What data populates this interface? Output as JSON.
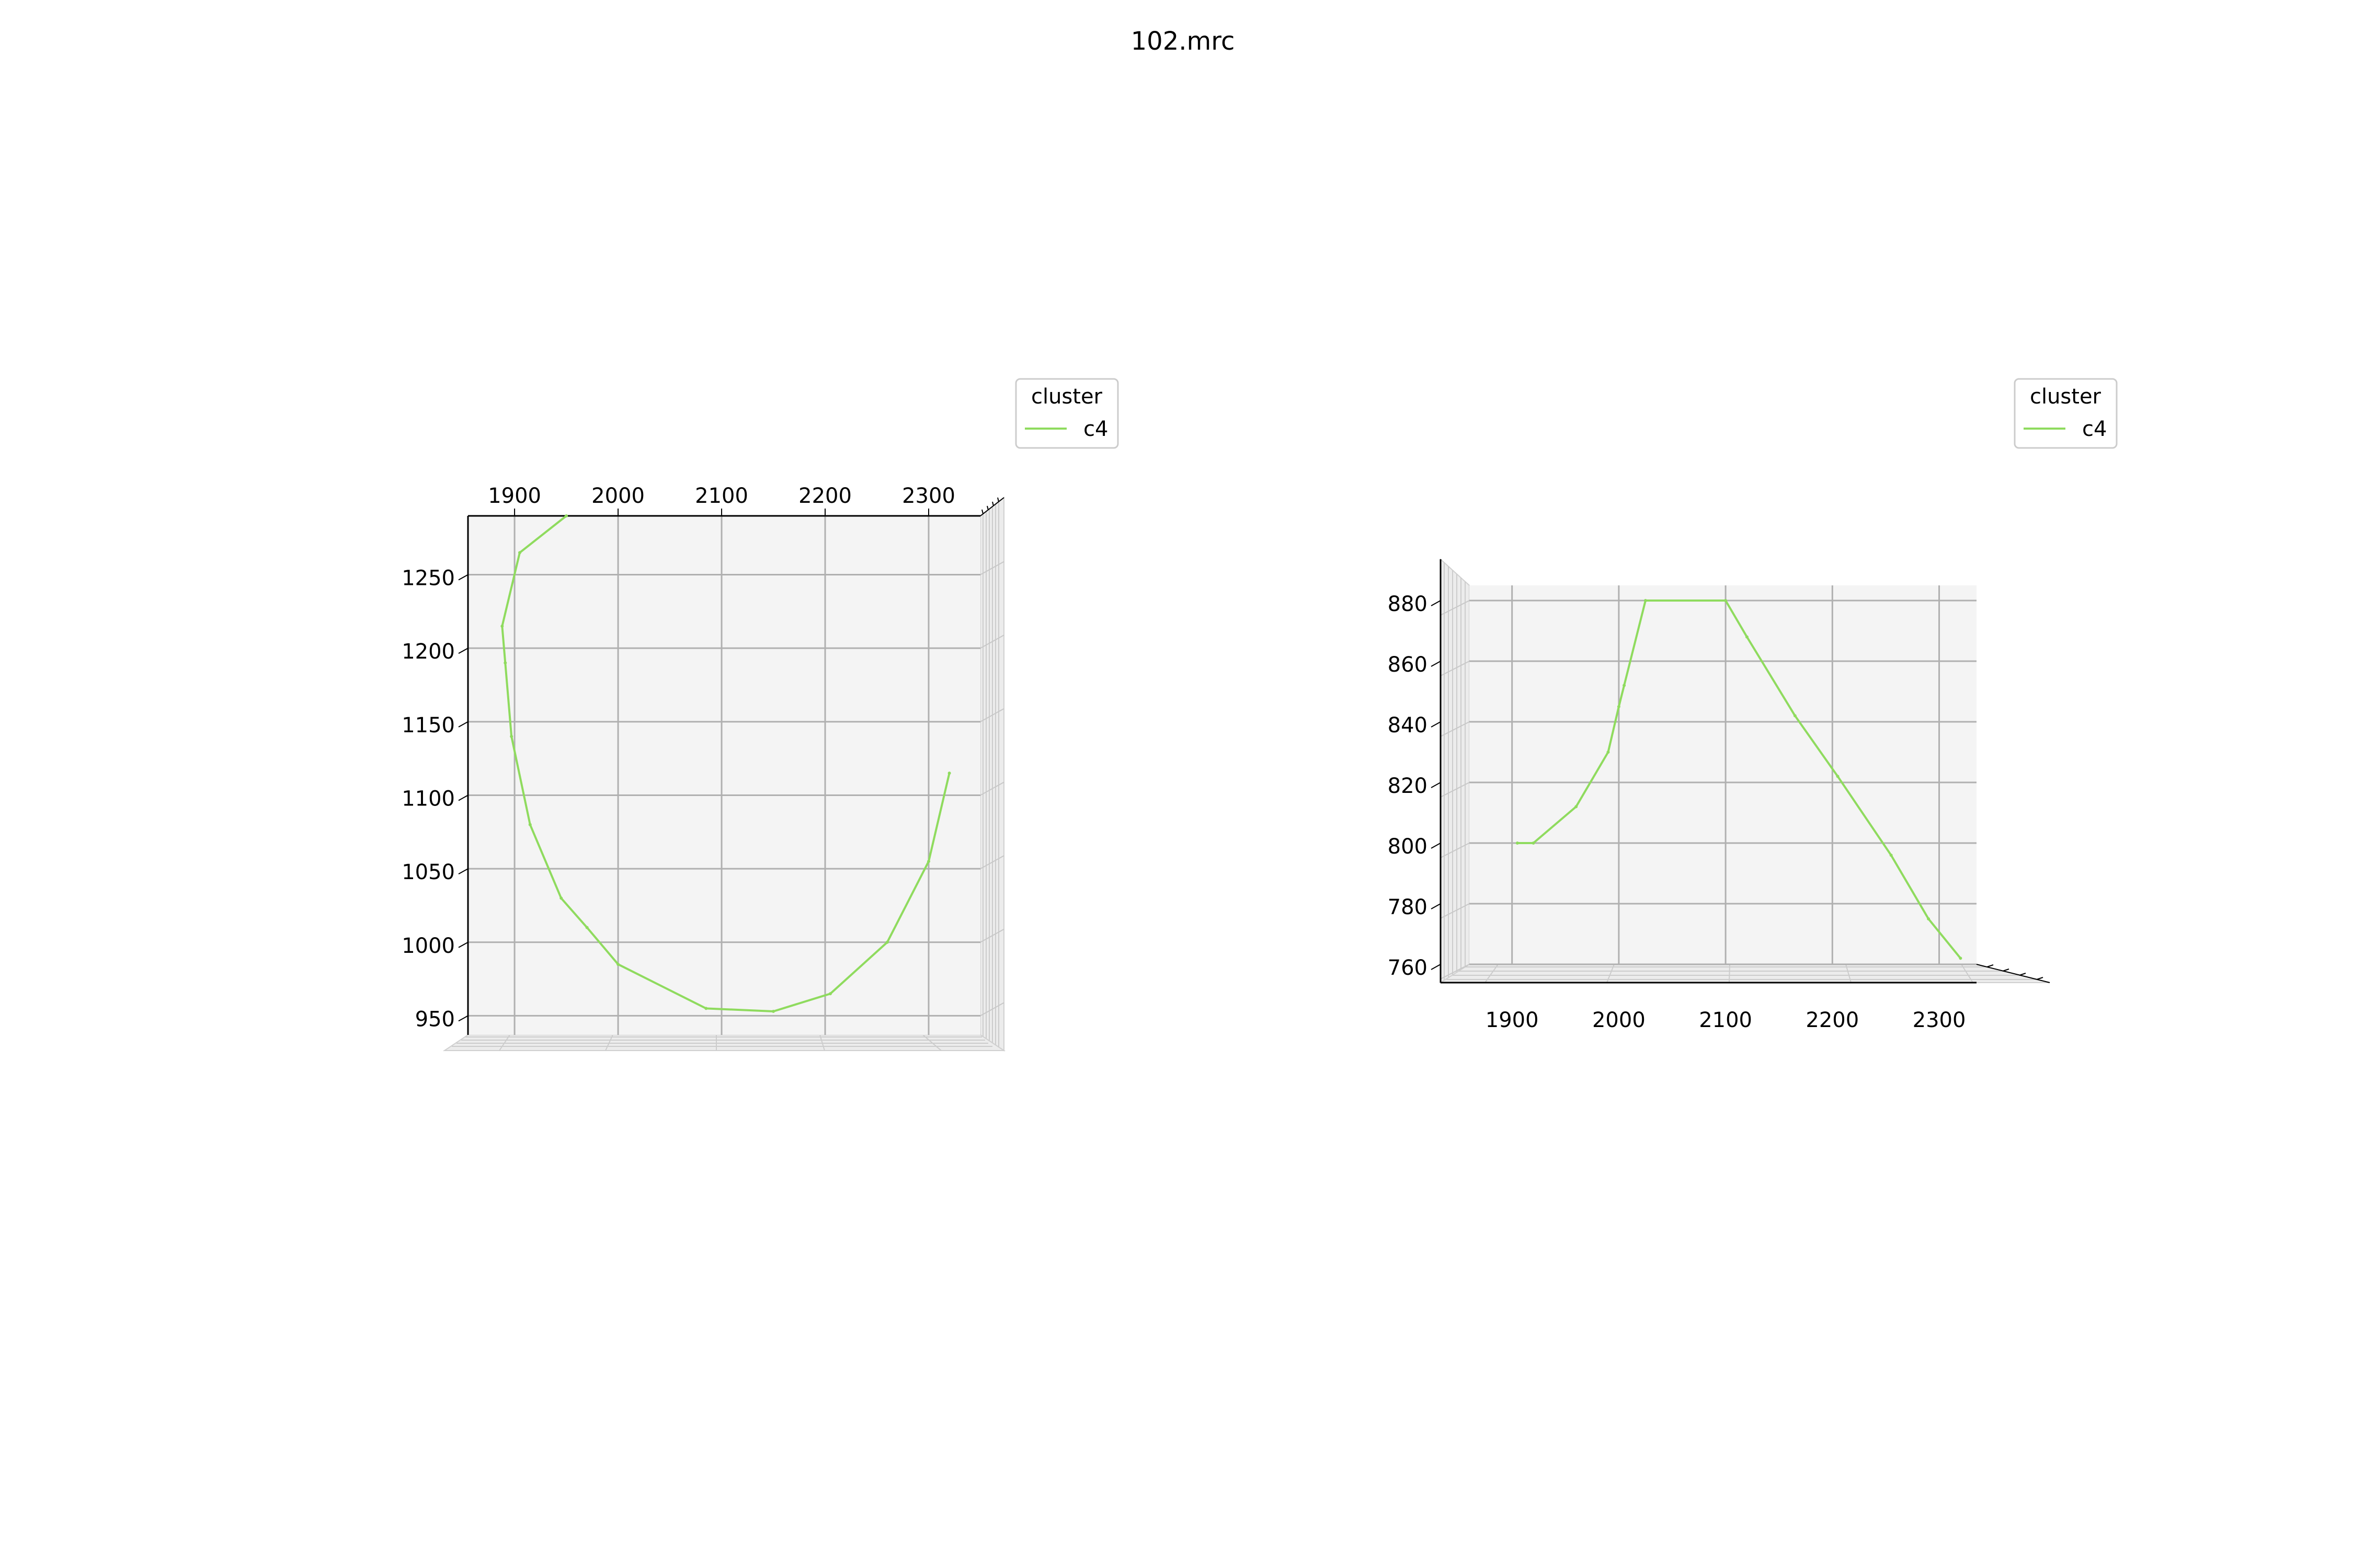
{
  "figure": {
    "title": "102.mrc"
  },
  "chart_data": [
    {
      "type": "line",
      "title": "",
      "xlabel": "",
      "ylabel": "",
      "xlim": [
        1855,
        2350
      ],
      "ylim": [
        1290,
        937
      ],
      "x_ticks": [
        "1900",
        "2000",
        "2100",
        "2200",
        "2300"
      ],
      "y_ticks": [
        "950",
        "1000",
        "1050",
        "1100",
        "1150",
        "1200",
        "1250"
      ],
      "grid": true,
      "legend": {
        "title": "cluster",
        "location": "top-right",
        "entries": [
          "c4"
        ]
      },
      "series": [
        {
          "name": "c4",
          "color": "#8fdb5e",
          "x": [
            1950,
            1905,
            1888,
            1891,
            1897,
            1915,
            1945,
            1970,
            2000,
            2085,
            2150,
            2205,
            2260,
            2300,
            2320
          ],
          "y": [
            1290,
            1265,
            1215,
            1190,
            1140,
            1080,
            1030,
            1010,
            985,
            955,
            953,
            965,
            1000,
            1055,
            1115
          ]
        }
      ]
    },
    {
      "type": "line",
      "title": "",
      "xlabel": "",
      "ylabel": "",
      "xlim": [
        1860,
        2335
      ],
      "ylim": [
        760,
        885
      ],
      "x_ticks": [
        "1900",
        "2000",
        "2100",
        "2200",
        "2300"
      ],
      "y_ticks": [
        "760",
        "780",
        "800",
        "820",
        "840",
        "860",
        "880"
      ],
      "grid": true,
      "legend": {
        "title": "cluster",
        "location": "top-right",
        "entries": [
          "c4"
        ]
      },
      "series": [
        {
          "name": "c4",
          "color": "#8fdb5e",
          "x": [
            1905,
            1920,
            1960,
            1990,
            2000,
            2005,
            2025,
            2100,
            2120,
            2165,
            2205,
            2255,
            2290,
            2320
          ],
          "y": [
            800,
            800,
            812,
            830,
            845,
            852,
            880,
            880,
            868,
            842,
            822,
            796,
            775,
            762
          ]
        }
      ]
    }
  ]
}
